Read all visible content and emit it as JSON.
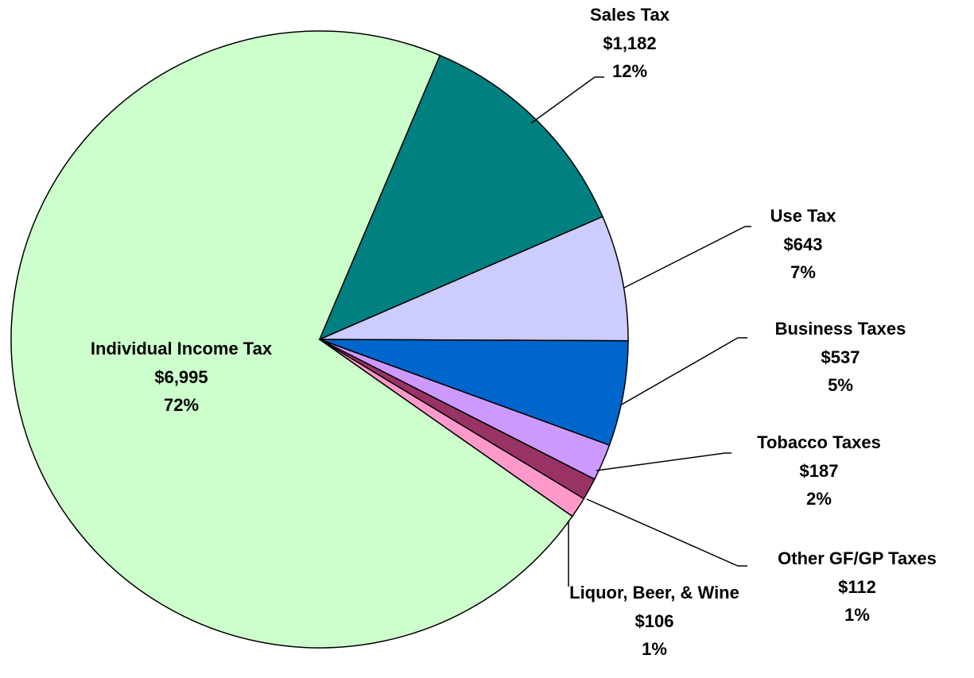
{
  "chart_data": {
    "type": "pie",
    "categories": [
      "Individual Income Tax",
      "Sales Tax",
      "Use Tax",
      "Business Taxes",
      "Tobacco Taxes",
      "Other GF/GP Taxes",
      "Liquor, Beer, & Wine"
    ],
    "values": [
      6995,
      1182,
      643,
      537,
      187,
      112,
      106
    ],
    "value_labels": [
      "$6,995",
      "$1,182",
      "$643",
      "$537",
      "$187",
      "$112",
      "$106"
    ],
    "percent_labels": [
      "72%",
      "12%",
      "7%",
      "5%",
      "2%",
      "1%",
      "1%"
    ],
    "colors": [
      "#ccffcc",
      "#008080",
      "#ccccff",
      "#0066cc",
      "#cc99ff",
      "#993366",
      "#ff99cc"
    ]
  }
}
